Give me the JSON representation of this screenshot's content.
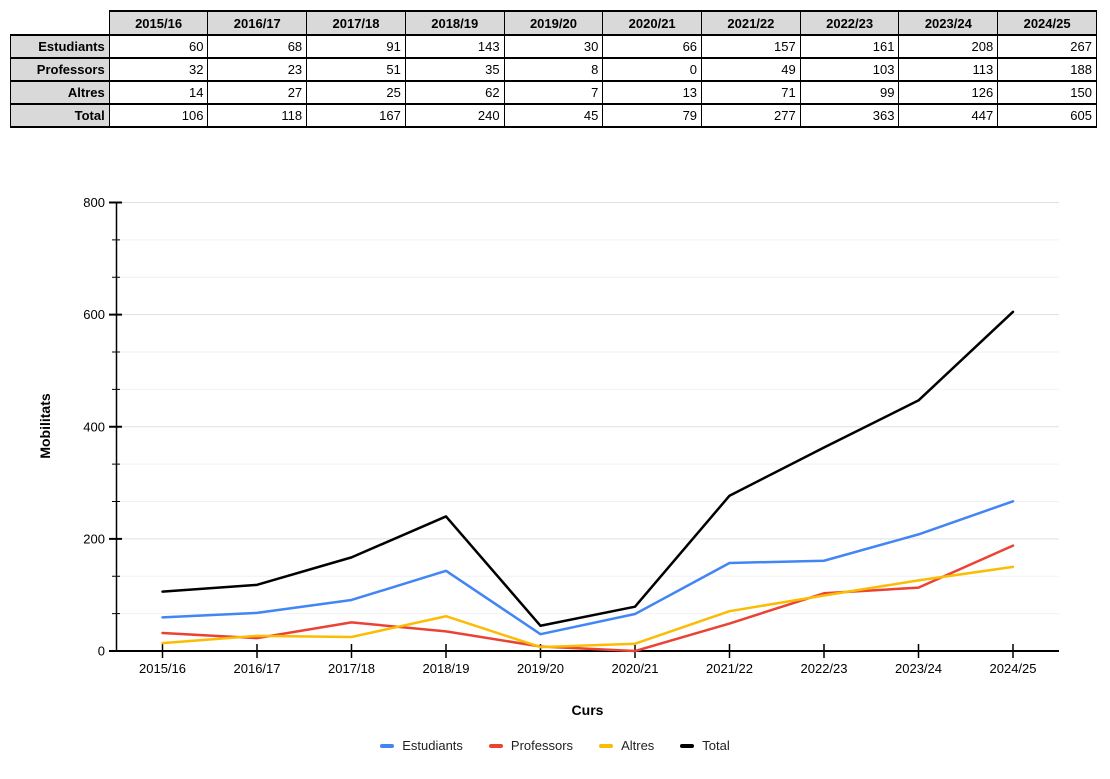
{
  "table": {
    "corner": "",
    "col_headers": [
      "2015/16",
      "2016/17",
      "2017/18",
      "2018/19",
      "2019/20",
      "2020/21",
      "2021/22",
      "2022/23",
      "2023/24",
      "2024/25"
    ],
    "rows": [
      {
        "label": "Estudiants",
        "values": [
          60,
          68,
          91,
          143,
          30,
          66,
          157,
          161,
          208,
          267
        ]
      },
      {
        "label": "Professors",
        "values": [
          32,
          23,
          51,
          35,
          8,
          0,
          49,
          103,
          113,
          188
        ]
      },
      {
        "label": "Altres",
        "values": [
          14,
          27,
          25,
          62,
          7,
          13,
          71,
          99,
          126,
          150
        ]
      },
      {
        "label": "Total",
        "values": [
          106,
          118,
          167,
          240,
          45,
          79,
          277,
          363,
          447,
          605
        ]
      }
    ]
  },
  "chart_data": {
    "type": "line",
    "x": [
      "2015/16",
      "2016/17",
      "2017/18",
      "2018/19",
      "2019/20",
      "2020/21",
      "2021/22",
      "2022/23",
      "2023/24",
      "2024/25"
    ],
    "series": [
      {
        "name": "Estudiants",
        "color": "#4285F4",
        "values": [
          60,
          68,
          91,
          143,
          30,
          66,
          157,
          161,
          208,
          267
        ]
      },
      {
        "name": "Professors",
        "color": "#EA4335",
        "values": [
          32,
          23,
          51,
          35,
          8,
          0,
          49,
          103,
          113,
          188
        ]
      },
      {
        "name": "Altres",
        "color": "#FBBC04",
        "values": [
          14,
          27,
          25,
          62,
          7,
          13,
          71,
          99,
          126,
          150
        ]
      },
      {
        "name": "Total",
        "color": "#000000",
        "values": [
          106,
          118,
          167,
          240,
          45,
          79,
          277,
          363,
          447,
          605
        ]
      }
    ],
    "title": "",
    "xlabel": "Curs",
    "ylabel": "Mobilitats",
    "ylim": [
      0,
      800
    ],
    "yticks": [
      0,
      200,
      400,
      600,
      800
    ],
    "minor_gridlines_per_interval": 2,
    "grid": true,
    "legend_position": "bottom"
  },
  "colors": {
    "table_header_bg": "#d9d9d9",
    "table_border": "#000000",
    "grid_major": "#e0e0e0",
    "grid_minor": "#f2f2f2",
    "axis": "#000000",
    "tick_label": "#000000",
    "legend_text": "#222222"
  }
}
